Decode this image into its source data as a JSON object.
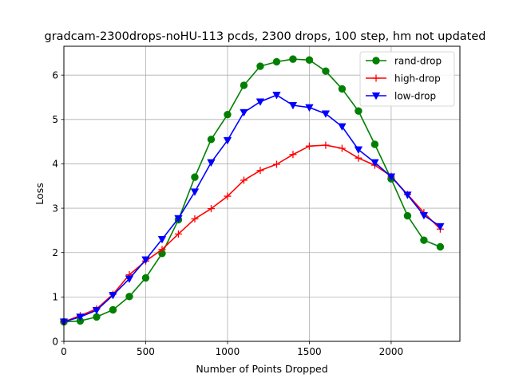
{
  "chart_data": {
    "type": "line",
    "title": "gradcam-2300drops-noHU-113 pcds, 2300 drops, 100 step, hm not updated",
    "xlabel": "Number of Points Dropped",
    "ylabel": "Loss",
    "xlim": [
      0,
      2420
    ],
    "ylim": [
      0,
      6.65
    ],
    "xticks": [
      0,
      500,
      1000,
      1500,
      2000
    ],
    "yticks": [
      0,
      1,
      2,
      3,
      4,
      5,
      6
    ],
    "grid": true,
    "legend_position": "top-right",
    "x": [
      0,
      100,
      200,
      300,
      400,
      500,
      600,
      700,
      800,
      900,
      1000,
      1100,
      1200,
      1300,
      1400,
      1500,
      1600,
      1700,
      1800,
      1900,
      2000,
      2100,
      2200,
      2300
    ],
    "series": [
      {
        "name": "rand-drop",
        "color": "#008000",
        "marker": "circle",
        "values": [
          0.44,
          0.46,
          0.55,
          0.71,
          1.01,
          1.43,
          1.98,
          2.74,
          3.7,
          4.55,
          5.11,
          5.77,
          6.2,
          6.3,
          6.36,
          6.34,
          6.09,
          5.69,
          5.19,
          4.44,
          3.66,
          2.83,
          2.28,
          2.13
        ]
      },
      {
        "name": "high-drop",
        "color": "#ff0000",
        "marker": "plus",
        "values": [
          0.44,
          0.58,
          0.73,
          1.06,
          1.5,
          1.81,
          2.07,
          2.42,
          2.76,
          2.99,
          3.27,
          3.63,
          3.85,
          3.99,
          4.21,
          4.4,
          4.42,
          4.35,
          4.13,
          3.97,
          3.72,
          3.31,
          2.9,
          2.53
        ]
      },
      {
        "name": "low-drop",
        "color": "#0000ff",
        "marker": "triangle-down",
        "values": [
          0.44,
          0.55,
          0.7,
          1.04,
          1.41,
          1.84,
          2.3,
          2.77,
          3.37,
          4.03,
          4.53,
          5.16,
          5.4,
          5.55,
          5.32,
          5.27,
          5.13,
          4.84,
          4.32,
          4.03,
          3.71,
          3.3,
          2.84,
          2.59
        ]
      }
    ]
  }
}
